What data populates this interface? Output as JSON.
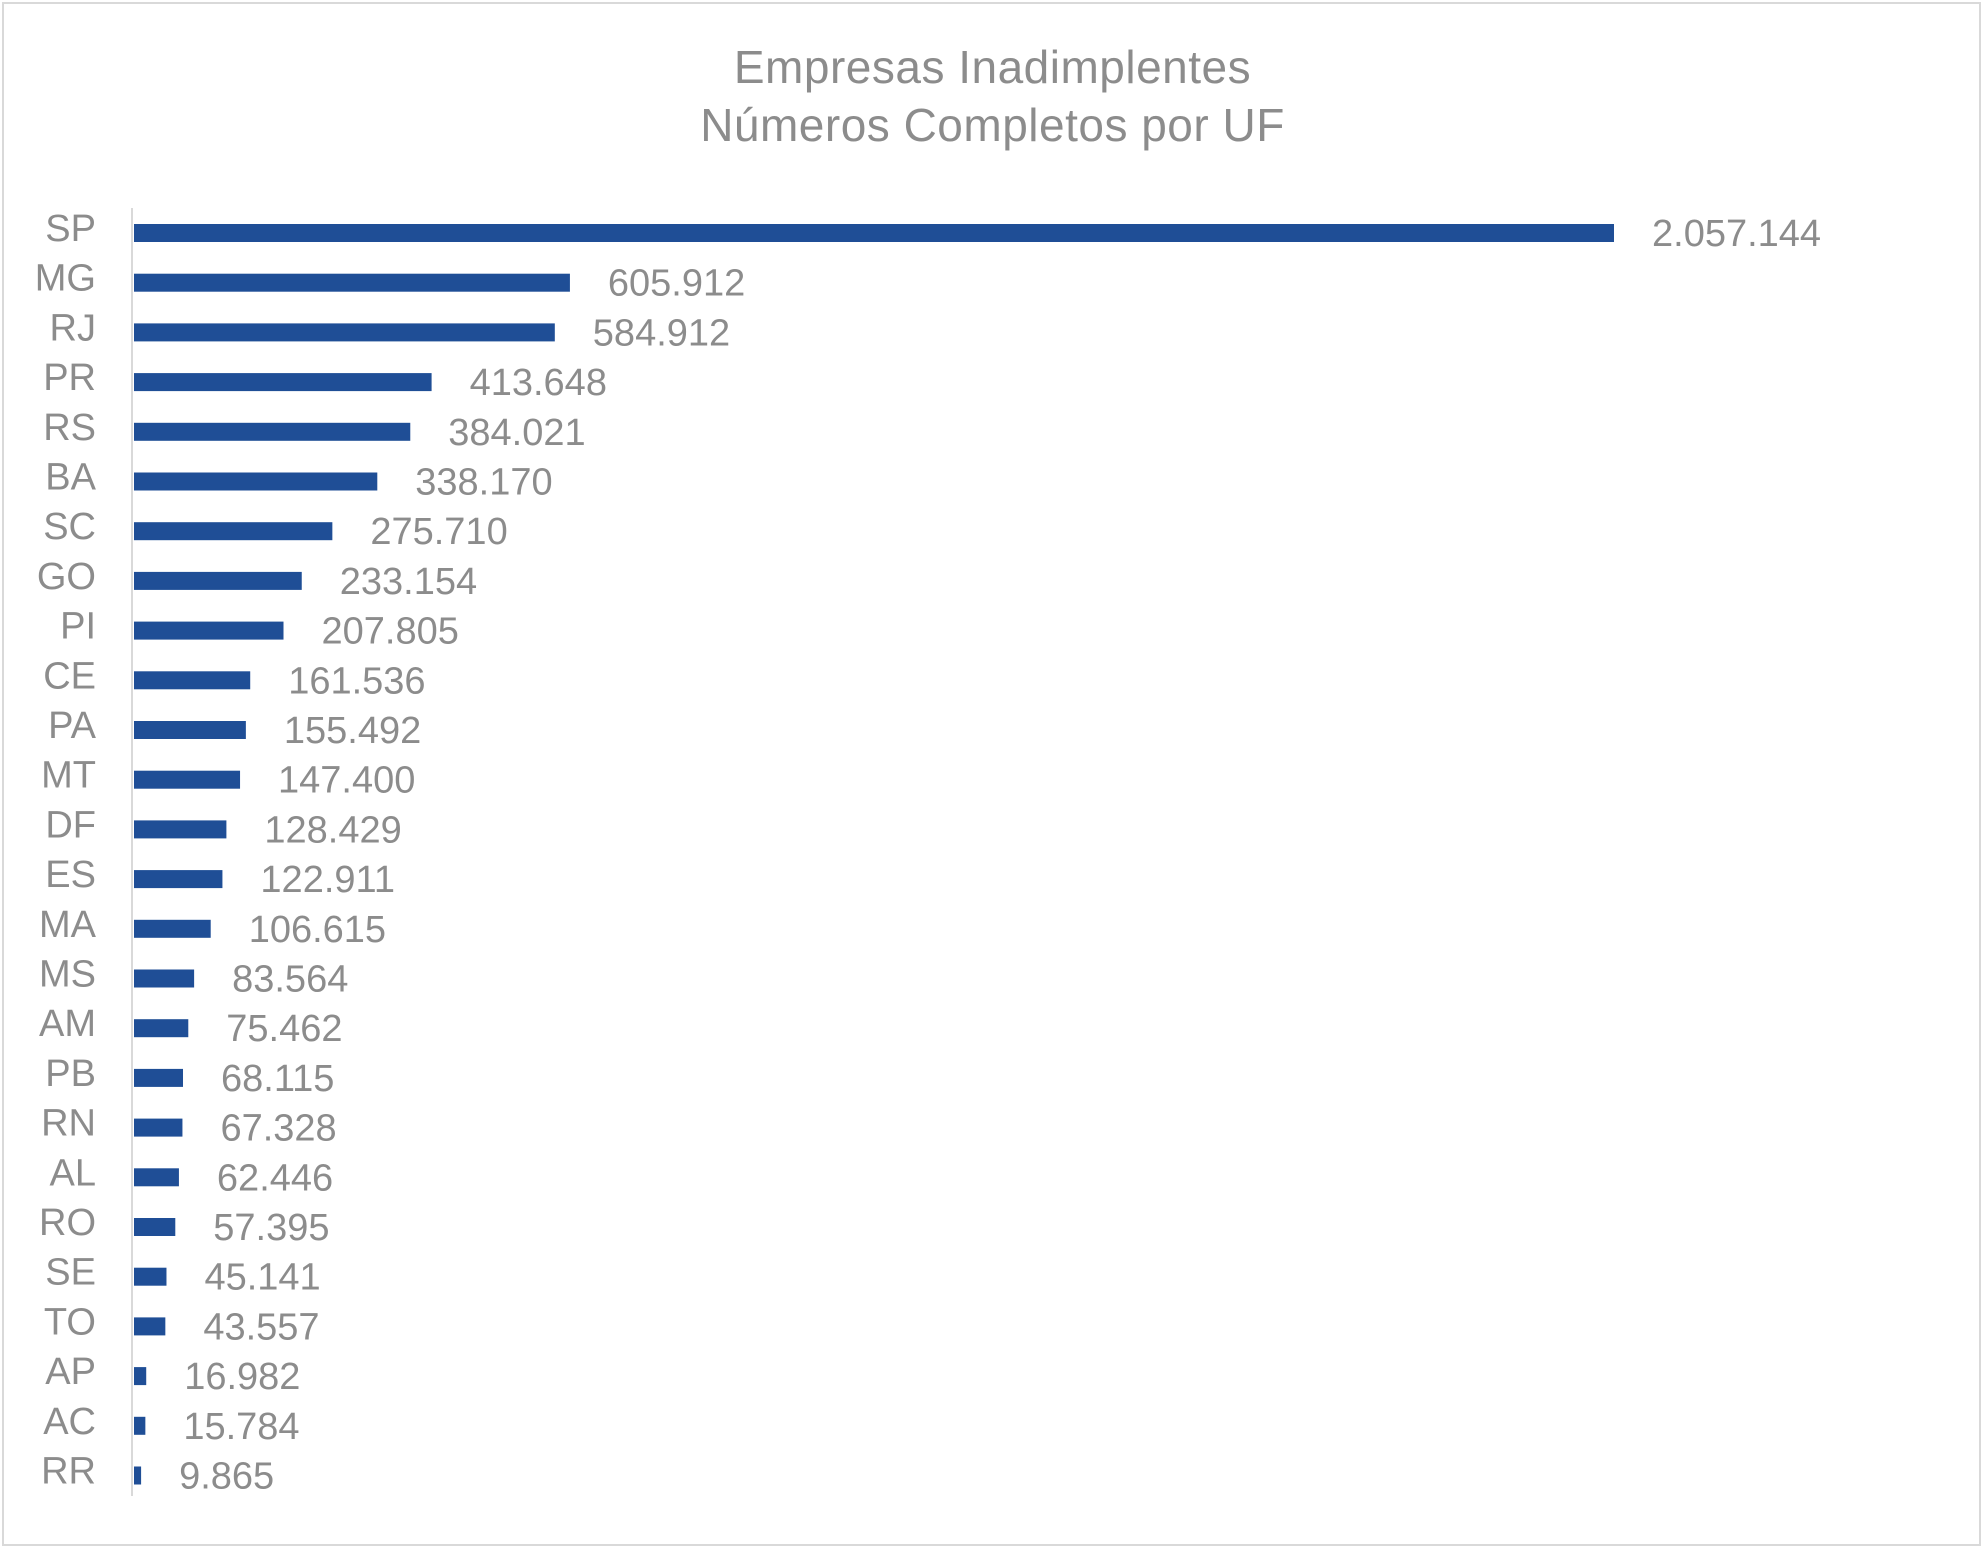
{
  "chart_data": {
    "type": "bar",
    "orientation": "horizontal",
    "title": "Empresas Inadimplentes",
    "subtitle": "Números Completos por UF",
    "categories": [
      "SP",
      "MG",
      "RJ",
      "PR",
      "RS",
      "BA",
      "SC",
      "GO",
      "PI",
      "CE",
      "PA",
      "MT",
      "DF",
      "ES",
      "MA",
      "MS",
      "AM",
      "PB",
      "RN",
      "AL",
      "RO",
      "SE",
      "TO",
      "AP",
      "AC",
      "RR"
    ],
    "values": [
      2057144,
      605912,
      584912,
      413648,
      384021,
      338170,
      275710,
      233154,
      207805,
      161536,
      155492,
      147400,
      128429,
      122911,
      106615,
      83564,
      75462,
      68115,
      67328,
      62446,
      57395,
      45141,
      43557,
      16982,
      15784,
      9865
    ],
    "data_labels": [
      "2.057.144",
      "605.912",
      "584.912",
      "413.648",
      "384.021",
      "338.170",
      "275.710",
      "233.154",
      "207.805",
      "161.536",
      "155.492",
      "147.400",
      "128.429",
      "122.911",
      "106.615",
      "83.564",
      "75.462",
      "68.115",
      "67.328",
      "62.446",
      "57.395",
      "45.141",
      "43.557",
      "16.982",
      "15.784",
      "9.865"
    ],
    "xlim": [
      0,
      2057144
    ],
    "grid": false,
    "legend": "none",
    "bar_color": "#1f4e96"
  }
}
